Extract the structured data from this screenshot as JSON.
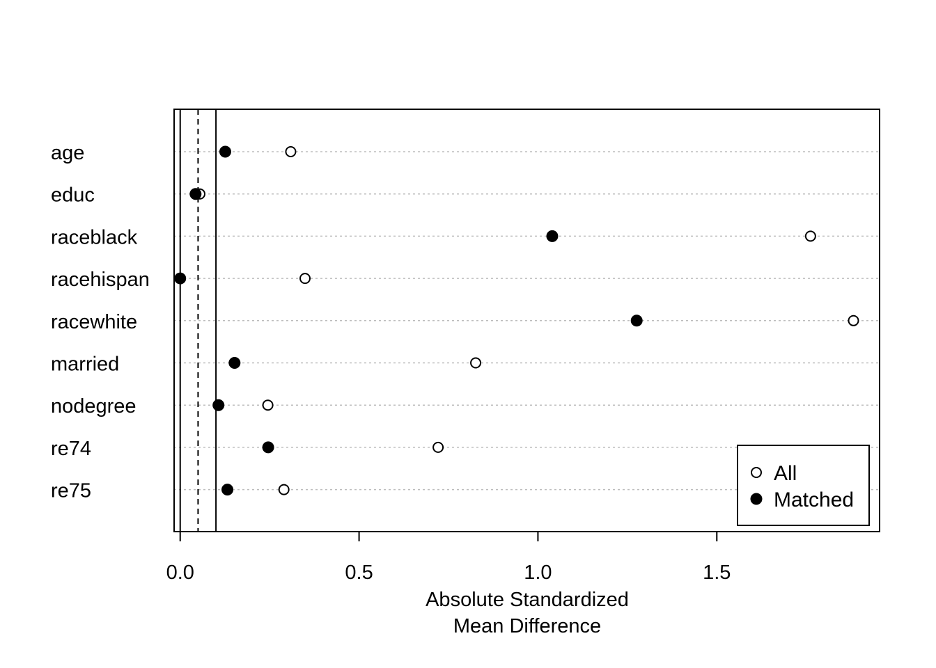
{
  "chart_data": {
    "type": "scatter",
    "title": "",
    "xlabel_lines": [
      "Absolute Standardized",
      "Mean Difference"
    ],
    "ylabel": "",
    "xlim": [
      -0.017,
      1.955
    ],
    "x_ticks": [
      0.0,
      0.5,
      1.0,
      1.5
    ],
    "x_tick_labels": [
      "0.0",
      "0.5",
      "1.0",
      "1.5"
    ],
    "categories": [
      "age",
      "educ",
      "raceblack",
      "racehispan",
      "racewhite",
      "married",
      "nodegree",
      "re74",
      "re75"
    ],
    "series": [
      {
        "name": "All",
        "marker": "open-circle",
        "values": [
          0.309,
          0.055,
          1.762,
          0.349,
          1.882,
          0.826,
          0.245,
          0.721,
          0.29
        ]
      },
      {
        "name": "Matched",
        "marker": "filled-circle",
        "values": [
          0.126,
          0.043,
          1.04,
          0.0,
          1.276,
          0.152,
          0.107,
          0.246,
          0.132
        ]
      }
    ],
    "reference_lines": [
      {
        "x": 0.0,
        "style": "solid"
      },
      {
        "x": 0.05,
        "style": "dashed"
      },
      {
        "x": 0.1,
        "style": "solid"
      }
    ],
    "grid": "horizontal-dotted",
    "legend_position": "bottom-right"
  }
}
